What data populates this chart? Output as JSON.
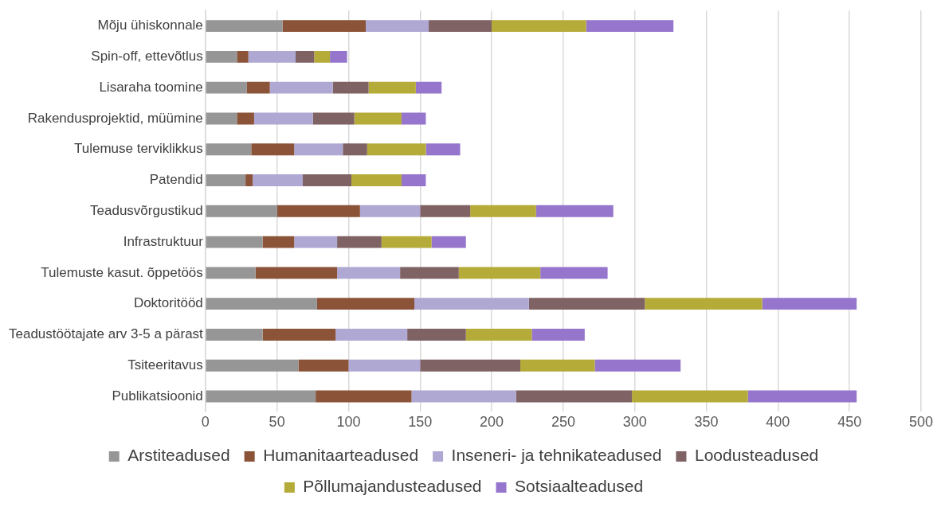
{
  "chart_data": {
    "type": "bar",
    "orientation": "horizontal",
    "stacked": true,
    "categories": [
      "Mõju ühiskonnale",
      "Spin-off, ettevõtlus",
      "Lisaraha toomine",
      "Rakendusprojektid, müümine",
      "Tulemuse terviklikkus",
      "Patendid",
      "Teadusvõrgustikud",
      "Infrastruktuur",
      "Tulemuste kasut. õppetöös",
      "Doktoritööd",
      "Teadustöötajate arv 3-5 a pärast",
      "Tsiteeritavus",
      "Publikatsioonid"
    ],
    "series": [
      {
        "name": "Arstiteadused",
        "color": "#969696",
        "values": [
          54,
          22,
          29,
          22,
          32,
          28,
          50,
          40,
          35,
          78,
          40,
          65,
          77
        ]
      },
      {
        "name": "Humanitaarteadused",
        "color": "#8b5338",
        "values": [
          58,
          8,
          16,
          12,
          30,
          5,
          58,
          22,
          57,
          68,
          51,
          35,
          67
        ]
      },
      {
        "name": "Inseneri- ja tehnikateadused",
        "color": "#aea8d3",
        "values": [
          44,
          33,
          44,
          41,
          34,
          35,
          42,
          30,
          44,
          80,
          50,
          50,
          73
        ]
      },
      {
        "name": "Loodusteadused",
        "color": "#7f6263",
        "values": [
          44,
          13,
          25,
          29,
          17,
          34,
          35,
          31,
          41,
          81,
          41,
          70,
          81
        ]
      },
      {
        "name": "Põllumajandusteadused",
        "color": "#b5ab39",
        "values": [
          66,
          11,
          33,
          33,
          41,
          35,
          46,
          35,
          57,
          82,
          46,
          52,
          81
        ]
      },
      {
        "name": "Sotsiaalteadused",
        "color": "#9676cc",
        "values": [
          61,
          12,
          18,
          17,
          24,
          17,
          54,
          24,
          47,
          66,
          37,
          60,
          76
        ]
      }
    ],
    "xlim": [
      0,
      500
    ],
    "xticks": [
      0,
      50,
      100,
      150,
      200,
      250,
      300,
      350,
      400,
      450,
      500
    ],
    "grid": "x",
    "legend": "bottom"
  }
}
